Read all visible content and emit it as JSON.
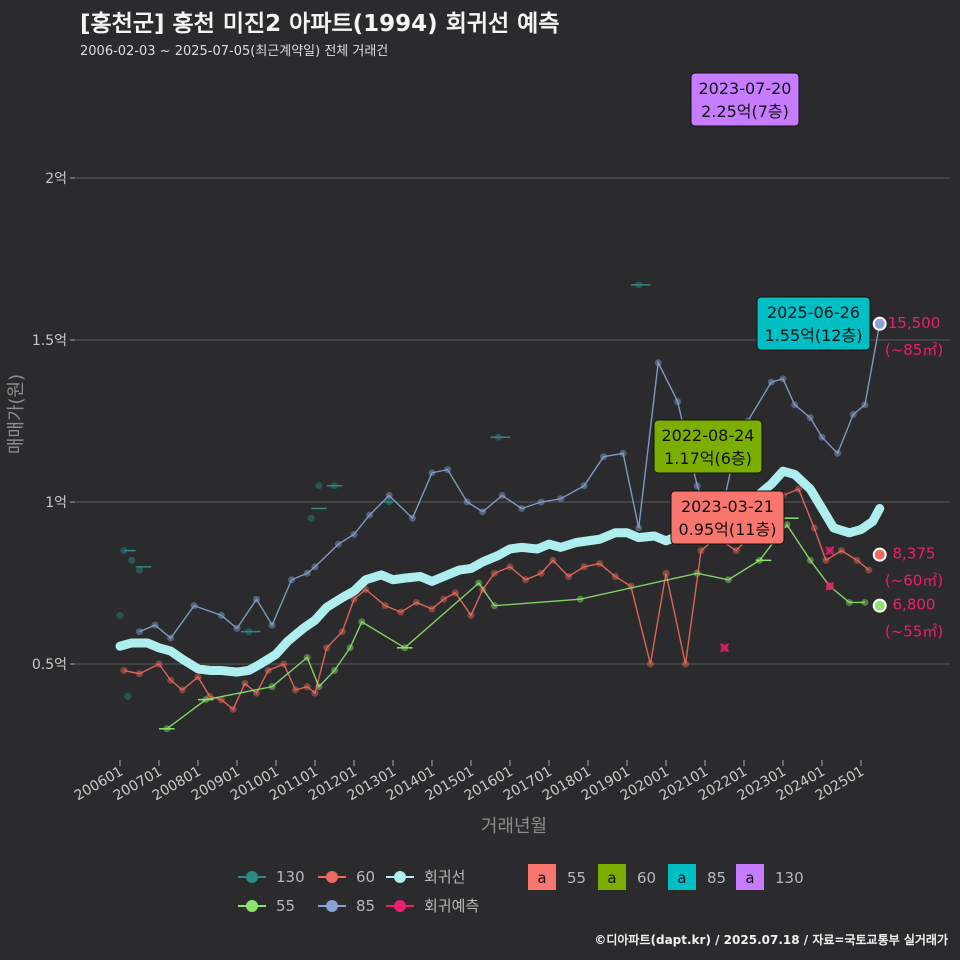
{
  "title": "[홍천군] 홍천 미진2 아파트(1994) 회귀선 예측",
  "subtitle": "2006-02-03 ~ 2025-07-05(최근계약일) 전체 거래건",
  "footer": "©디아파트(dapt.kr) / 2025.07.18 / 자료=국토교통부 실거래가",
  "chart_data": {
    "type": "line",
    "xlabel": "거래년월",
    "ylabel": "매매가(원)",
    "x_ticks": [
      "200601",
      "200701",
      "200801",
      "200901",
      "201001",
      "201101",
      "201201",
      "201301",
      "201401",
      "201501",
      "201601",
      "201701",
      "201801",
      "201901",
      "202001",
      "202101",
      "202201",
      "202301",
      "202401",
      "202501"
    ],
    "y_ticks": [
      {
        "value": 5000,
        "label": "0.5억"
      },
      {
        "value": 10000,
        "label": "1억"
      },
      {
        "value": 15000,
        "label": "1.5억"
      },
      {
        "value": 20000,
        "label": "2억"
      }
    ],
    "xlim": [
      2005.7,
      2026.0
    ],
    "ylim": [
      2800,
      23000
    ],
    "grid": true,
    "colors": {
      "s130": "#2a8a84",
      "s60": "#ee6a5c",
      "s55": "#8ce46e",
      "s85": "#8aa3d4",
      "regression": "#aeeeee",
      "forecast": "#ec1f6e"
    },
    "series": [
      {
        "name": "130",
        "points": [
          [
            2006.1,
            8500
          ],
          [
            2006.3,
            8200
          ],
          [
            2006.5,
            7900
          ],
          [
            2006.2,
            4000
          ],
          [
            2006.0,
            6500
          ],
          [
            2009.3,
            6000
          ],
          [
            2010.9,
            9500
          ],
          [
            2011.1,
            10500
          ],
          [
            2011.5,
            10500
          ],
          [
            2012.9,
            10000
          ],
          [
            2015.7,
            12000
          ],
          [
            2019.3,
            16700
          ],
          [
            2023.0,
            22500
          ]
        ],
        "steps": [
          [
            2006.1,
            2006.4,
            8500
          ],
          [
            2006.4,
            2006.8,
            8000
          ],
          [
            2009.1,
            2009.6,
            6000
          ],
          [
            2010.9,
            2011.3,
            9800
          ],
          [
            2011.3,
            2011.7,
            10500
          ],
          [
            2012.7,
            2013.0,
            10000
          ],
          [
            2015.5,
            2016.0,
            12000
          ],
          [
            2019.1,
            2019.6,
            16700
          ],
          [
            2022.9,
            2023.3,
            22500
          ]
        ]
      },
      {
        "name": "60",
        "points": [
          [
            2006.1,
            4800
          ],
          [
            2006.5,
            4700
          ],
          [
            2007.0,
            5000
          ],
          [
            2007.3,
            4500
          ],
          [
            2007.6,
            4200
          ],
          [
            2008.0,
            4600
          ],
          [
            2008.3,
            4000
          ],
          [
            2008.6,
            3900
          ],
          [
            2008.9,
            3600
          ],
          [
            2009.2,
            4400
          ],
          [
            2009.5,
            4100
          ],
          [
            2009.8,
            4800
          ],
          [
            2010.2,
            5000
          ],
          [
            2010.5,
            4200
          ],
          [
            2010.8,
            4300
          ],
          [
            2011.0,
            4100
          ],
          [
            2011.3,
            5500
          ],
          [
            2011.7,
            6000
          ],
          [
            2012.0,
            7000
          ],
          [
            2012.3,
            7300
          ],
          [
            2012.8,
            6800
          ],
          [
            2013.2,
            6600
          ],
          [
            2013.6,
            6900
          ],
          [
            2014.0,
            6700
          ],
          [
            2014.3,
            7000
          ],
          [
            2014.6,
            7200
          ],
          [
            2015.0,
            6500
          ],
          [
            2015.3,
            7300
          ],
          [
            2015.6,
            7800
          ],
          [
            2016.0,
            8000
          ],
          [
            2016.4,
            7600
          ],
          [
            2016.8,
            7800
          ],
          [
            2017.1,
            8200
          ],
          [
            2017.5,
            7700
          ],
          [
            2017.9,
            8000
          ],
          [
            2018.3,
            8100
          ],
          [
            2018.7,
            7700
          ],
          [
            2019.1,
            7400
          ],
          [
            2019.6,
            5000
          ],
          [
            2020.0,
            7800
          ],
          [
            2020.5,
            5000
          ],
          [
            2020.9,
            8500
          ],
          [
            2021.3,
            8900
          ],
          [
            2021.8,
            8500
          ],
          [
            2022.2,
            9000
          ],
          [
            2022.6,
            9700
          ],
          [
            2023.0,
            10200
          ],
          [
            2023.4,
            10400
          ],
          [
            2023.8,
            9200
          ],
          [
            2024.1,
            8200
          ],
          [
            2024.5,
            8500
          ],
          [
            2024.9,
            8200
          ],
          [
            2025.2,
            7900
          ]
        ]
      },
      {
        "name": "55",
        "points": [
          [
            2007.2,
            3000
          ],
          [
            2008.2,
            3900
          ],
          [
            2009.9,
            4300
          ],
          [
            2010.8,
            5200
          ],
          [
            2011.1,
            4300
          ],
          [
            2011.5,
            4800
          ],
          [
            2011.9,
            5500
          ],
          [
            2012.2,
            6300
          ],
          [
            2013.3,
            5500
          ],
          [
            2015.2,
            7500
          ],
          [
            2015.6,
            6800
          ],
          [
            2017.8,
            7000
          ],
          [
            2020.8,
            7800
          ],
          [
            2021.6,
            7600
          ],
          [
            2022.4,
            8200
          ],
          [
            2023.1,
            9300
          ],
          [
            2023.7,
            8200
          ],
          [
            2024.2,
            7400
          ],
          [
            2024.7,
            6900
          ],
          [
            2025.1,
            6900
          ]
        ],
        "steps": [
          [
            2007.0,
            2007.4,
            3000
          ],
          [
            2008.0,
            2008.4,
            3900
          ],
          [
            2013.1,
            2013.5,
            5500
          ],
          [
            2022.3,
            2022.7,
            8200
          ],
          [
            2023.0,
            2023.4,
            9500
          ]
        ]
      },
      {
        "name": "85",
        "points": [
          [
            2006.5,
            6000
          ],
          [
            2006.9,
            6200
          ],
          [
            2007.3,
            5800
          ],
          [
            2007.9,
            6800
          ],
          [
            2008.6,
            6500
          ],
          [
            2009.0,
            6100
          ],
          [
            2009.5,
            7000
          ],
          [
            2009.9,
            6200
          ],
          [
            2010.4,
            7600
          ],
          [
            2010.8,
            7800
          ],
          [
            2011.0,
            8000
          ],
          [
            2011.6,
            8700
          ],
          [
            2012.0,
            9000
          ],
          [
            2012.4,
            9600
          ],
          [
            2012.9,
            10200
          ],
          [
            2013.5,
            9500
          ],
          [
            2014.0,
            10900
          ],
          [
            2014.4,
            11000
          ],
          [
            2014.9,
            10000
          ],
          [
            2015.3,
            9700
          ],
          [
            2015.8,
            10200
          ],
          [
            2016.3,
            9800
          ],
          [
            2016.8,
            10000
          ],
          [
            2017.3,
            10100
          ],
          [
            2017.9,
            10500
          ],
          [
            2018.4,
            11400
          ],
          [
            2018.9,
            11500
          ],
          [
            2019.3,
            9200
          ],
          [
            2019.8,
            14300
          ],
          [
            2020.3,
            13100
          ],
          [
            2020.8,
            10500
          ],
          [
            2021.3,
            9000
          ],
          [
            2021.7,
            11200
          ],
          [
            2022.1,
            12500
          ],
          [
            2022.7,
            13700
          ],
          [
            2023.0,
            13800
          ],
          [
            2023.3,
            13000
          ],
          [
            2023.7,
            12600
          ],
          [
            2024.0,
            12000
          ],
          [
            2024.4,
            11500
          ],
          [
            2024.8,
            12700
          ],
          [
            2025.1,
            13000
          ],
          [
            2025.48,
            15500
          ]
        ],
        "steps": []
      },
      {
        "name": "회귀선",
        "points": [
          [
            2006.0,
            5550
          ],
          [
            2006.3,
            5650
          ],
          [
            2006.7,
            5650
          ],
          [
            2007.0,
            5500
          ],
          [
            2007.3,
            5400
          ],
          [
            2007.6,
            5150
          ],
          [
            2008.0,
            4850
          ],
          [
            2008.3,
            4800
          ],
          [
            2008.6,
            4800
          ],
          [
            2009.0,
            4750
          ],
          [
            2009.3,
            4800
          ],
          [
            2009.6,
            5000
          ],
          [
            2010.0,
            5300
          ],
          [
            2010.3,
            5700
          ],
          [
            2010.7,
            6100
          ],
          [
            2011.0,
            6350
          ],
          [
            2011.3,
            6750
          ],
          [
            2011.7,
            7050
          ],
          [
            2012.0,
            7250
          ],
          [
            2012.3,
            7600
          ],
          [
            2012.7,
            7750
          ],
          [
            2013.0,
            7600
          ],
          [
            2013.3,
            7650
          ],
          [
            2013.7,
            7700
          ],
          [
            2014.0,
            7550
          ],
          [
            2014.3,
            7700
          ],
          [
            2014.7,
            7900
          ],
          [
            2015.0,
            7950
          ],
          [
            2015.3,
            8150
          ],
          [
            2015.7,
            8350
          ],
          [
            2016.0,
            8550
          ],
          [
            2016.3,
            8600
          ],
          [
            2016.7,
            8550
          ],
          [
            2017.0,
            8700
          ],
          [
            2017.3,
            8600
          ],
          [
            2017.7,
            8750
          ],
          [
            2018.0,
            8800
          ],
          [
            2018.3,
            8850
          ],
          [
            2018.7,
            9050
          ],
          [
            2019.0,
            9050
          ],
          [
            2019.3,
            8900
          ],
          [
            2019.7,
            8950
          ],
          [
            2020.0,
            8800
          ],
          [
            2020.3,
            8950
          ],
          [
            2020.7,
            9050
          ],
          [
            2021.0,
            8950
          ],
          [
            2021.3,
            9000
          ],
          [
            2021.7,
            9350
          ],
          [
            2022.0,
            9700
          ],
          [
            2022.3,
            10150
          ],
          [
            2022.7,
            10550
          ],
          [
            2023.0,
            10950
          ],
          [
            2023.3,
            10850
          ],
          [
            2023.7,
            10400
          ],
          [
            2024.0,
            9800
          ],
          [
            2024.3,
            9200
          ],
          [
            2024.7,
            9050
          ],
          [
            2025.0,
            9150
          ],
          [
            2025.3,
            9400
          ],
          [
            2025.48,
            9800
          ]
        ]
      }
    ],
    "forecast_points": [
      [
        2021.5,
        5500
      ],
      [
        2022.5,
        14800
      ],
      [
        2024.2,
        7400
      ],
      [
        2024.2,
        8500
      ]
    ],
    "end_points": [
      {
        "series": "85",
        "x": 2025.48,
        "y": 15500,
        "value_label": "15,500",
        "area_label": "(~85㎡)"
      },
      {
        "series": "60",
        "x": 2025.48,
        "y": 8375,
        "value_label": "8,375",
        "area_label": "(~60㎡)"
      },
      {
        "series": "55",
        "x": 2025.48,
        "y": 6800,
        "value_label": "6,800",
        "area_label": "(~55㎡)"
      }
    ],
    "annotations": [
      {
        "series": "130",
        "x": 2023.0,
        "y": 22500,
        "date": "2023-07-20",
        "price": "2.25억(7층)",
        "color": "#c77cff"
      },
      {
        "series": "85",
        "x": 2024.0,
        "y": 15500,
        "date": "2025-06-26",
        "price": "1.55억(12층)",
        "color": "#00bfc4"
      },
      {
        "series": "60",
        "x": 2021.6,
        "y": 11700,
        "date": "2022-08-24",
        "price": "1.17억(6층)",
        "color": "#7cae00"
      },
      {
        "series": "55",
        "x": 2021.4,
        "y": 9500,
        "date": "2023-03-21",
        "price": "0.95억(11층)",
        "color": "#f8766d"
      }
    ],
    "legend": {
      "position": "bottom",
      "line_items": [
        {
          "label": "130",
          "color": "#2a8a84"
        },
        {
          "label": "60",
          "color": "#ee6a5c"
        },
        {
          "label": "회귀선",
          "color": "#aeeeee"
        },
        {
          "label": "55",
          "color": "#8ce46e"
        },
        {
          "label": "85",
          "color": "#8aa3d4"
        },
        {
          "label": "회귀예측",
          "color": "#ec1f6e"
        }
      ],
      "box_glyph": "a",
      "box_items": [
        {
          "label": "55",
          "color": "#f8766d"
        },
        {
          "label": "60",
          "color": "#7cae00"
        },
        {
          "label": "85",
          "color": "#00bfc4"
        },
        {
          "label": "130",
          "color": "#c77cff"
        }
      ]
    }
  }
}
